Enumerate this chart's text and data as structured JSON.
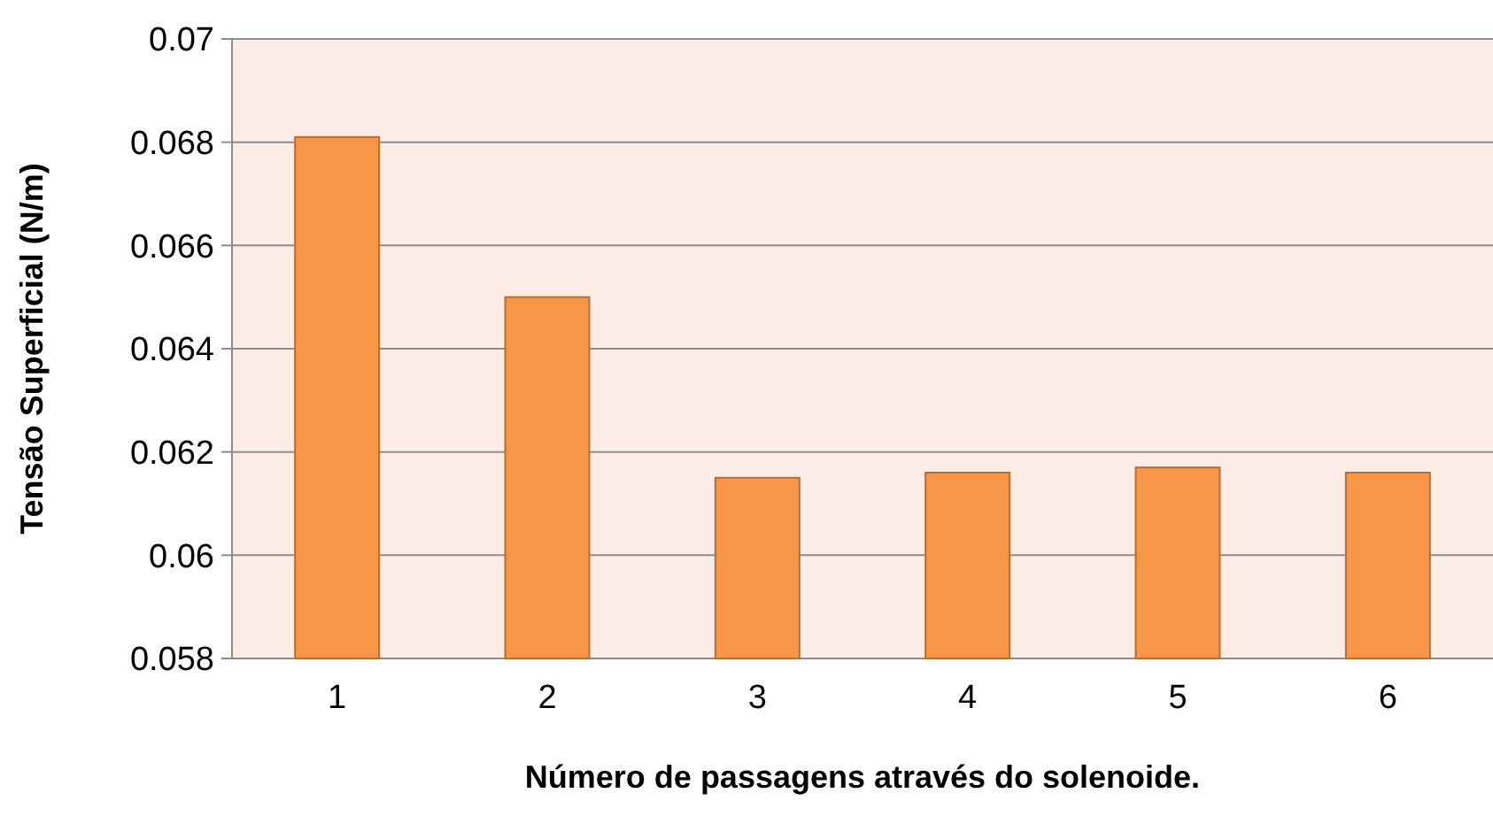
{
  "chart_data": {
    "type": "bar",
    "xlabel": "Número de passagens através do solenoide.",
    "ylabel": "Tensão Superficial (N/m)",
    "categories": [
      "1",
      "2",
      "3",
      "4",
      "5",
      "6"
    ],
    "values": [
      0.0681,
      0.065,
      0.0615,
      0.0616,
      0.0617,
      0.0616
    ],
    "color": "#f79646",
    "ylim": [
      0.058,
      0.07
    ],
    "yticks": [
      {
        "value": 0.058,
        "label": "0.058"
      },
      {
        "value": 0.06,
        "label": "0.06"
      },
      {
        "value": 0.062,
        "label": "0.062"
      },
      {
        "value": 0.064,
        "label": "0.064"
      },
      {
        "value": 0.066,
        "label": "0.066"
      },
      {
        "value": 0.068,
        "label": "0.068"
      },
      {
        "value": 0.07,
        "label": "0.07"
      }
    ],
    "grid": "y"
  }
}
